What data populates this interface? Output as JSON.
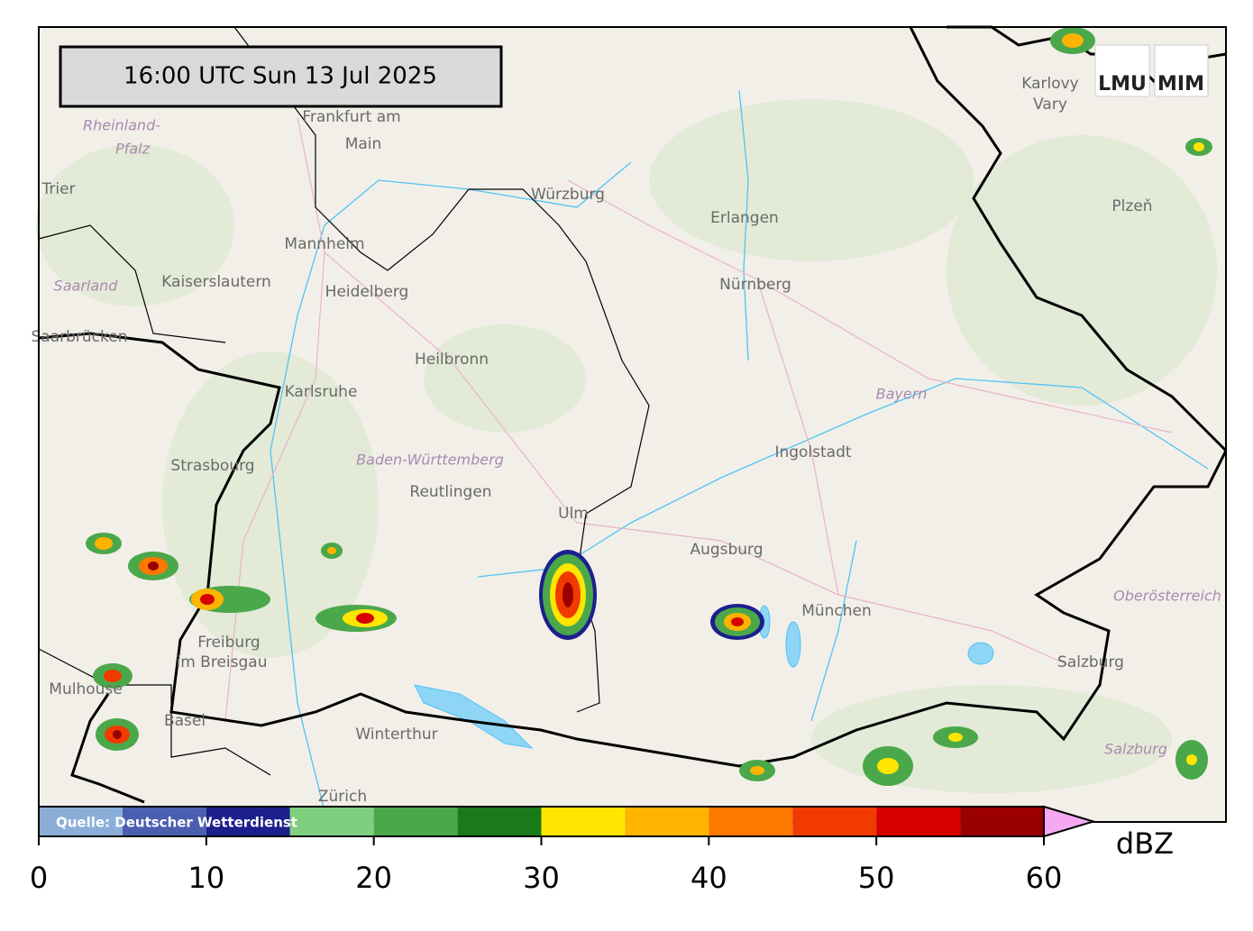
{
  "timestamp": "16:00 UTC  Sun 13 Jul 2025",
  "logos": [
    "LMU",
    "MIM"
  ],
  "source": "Quelle: Deutscher Wetterdienst",
  "cities": [
    "Frankfurt am",
    "Main",
    "Würzburg",
    "Erlangen",
    "Nürnberg",
    "Mannheim",
    "Heidelberg",
    "Kaiserslautern",
    "Saarbrücken",
    "Trier",
    "Karlsruhe",
    "Heilbronn",
    "Strasbourg",
    "Reutlingen",
    "Ulm",
    "Augsburg",
    "Ingolstadt",
    "München",
    "Freiburg",
    "im Breisgau",
    "Mulhouse",
    "Basel",
    "Winterthur",
    "Zürich",
    "Salzburg",
    "Karlovy",
    "Vary",
    "Plzeň"
  ],
  "regions": [
    "Rheinland-",
    "Pfalz",
    "Saarland",
    "Baden-Württemberg",
    "Bayern",
    "Oberösterreich",
    "Salzburg"
  ],
  "colorbar": {
    "bounds": [
      0,
      5,
      10,
      15,
      20,
      25,
      30,
      35,
      40,
      45,
      50,
      55,
      60
    ],
    "colors": [
      "#8aaed8",
      "#4a5fb0",
      "#1c1f8c",
      "#7fcf7f",
      "#4aa84a",
      "#1a7a1a",
      "#ffe600",
      "#ffb400",
      "#ff7800",
      "#f03a00",
      "#d60000",
      "#9a0000"
    ],
    "extend_color": "#f7a8f2",
    "ticks": [
      0,
      10,
      20,
      30,
      40,
      50,
      60
    ],
    "unit": "dBZ"
  }
}
